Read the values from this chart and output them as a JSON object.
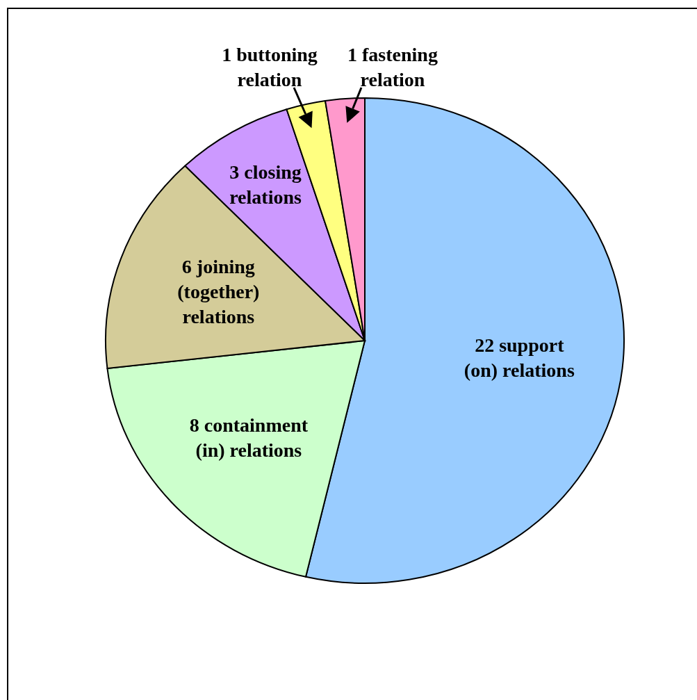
{
  "chart_data": {
    "type": "pie",
    "categories": [
      "22 support\n(on) relations",
      "8 containment\n(in) relations",
      "6 joining\n(together)\nrelations",
      "3 closing\nrelations",
      "1 buttoning\nrelation",
      "1 fastening\nrelation"
    ],
    "values": [
      22,
      8,
      6,
      3,
      1,
      1
    ],
    "colors": [
      "#99ccff",
      "#ccffcc",
      "#d4cc99",
      "#cc99ff",
      "#ffff80",
      "#ff99cc"
    ]
  }
}
